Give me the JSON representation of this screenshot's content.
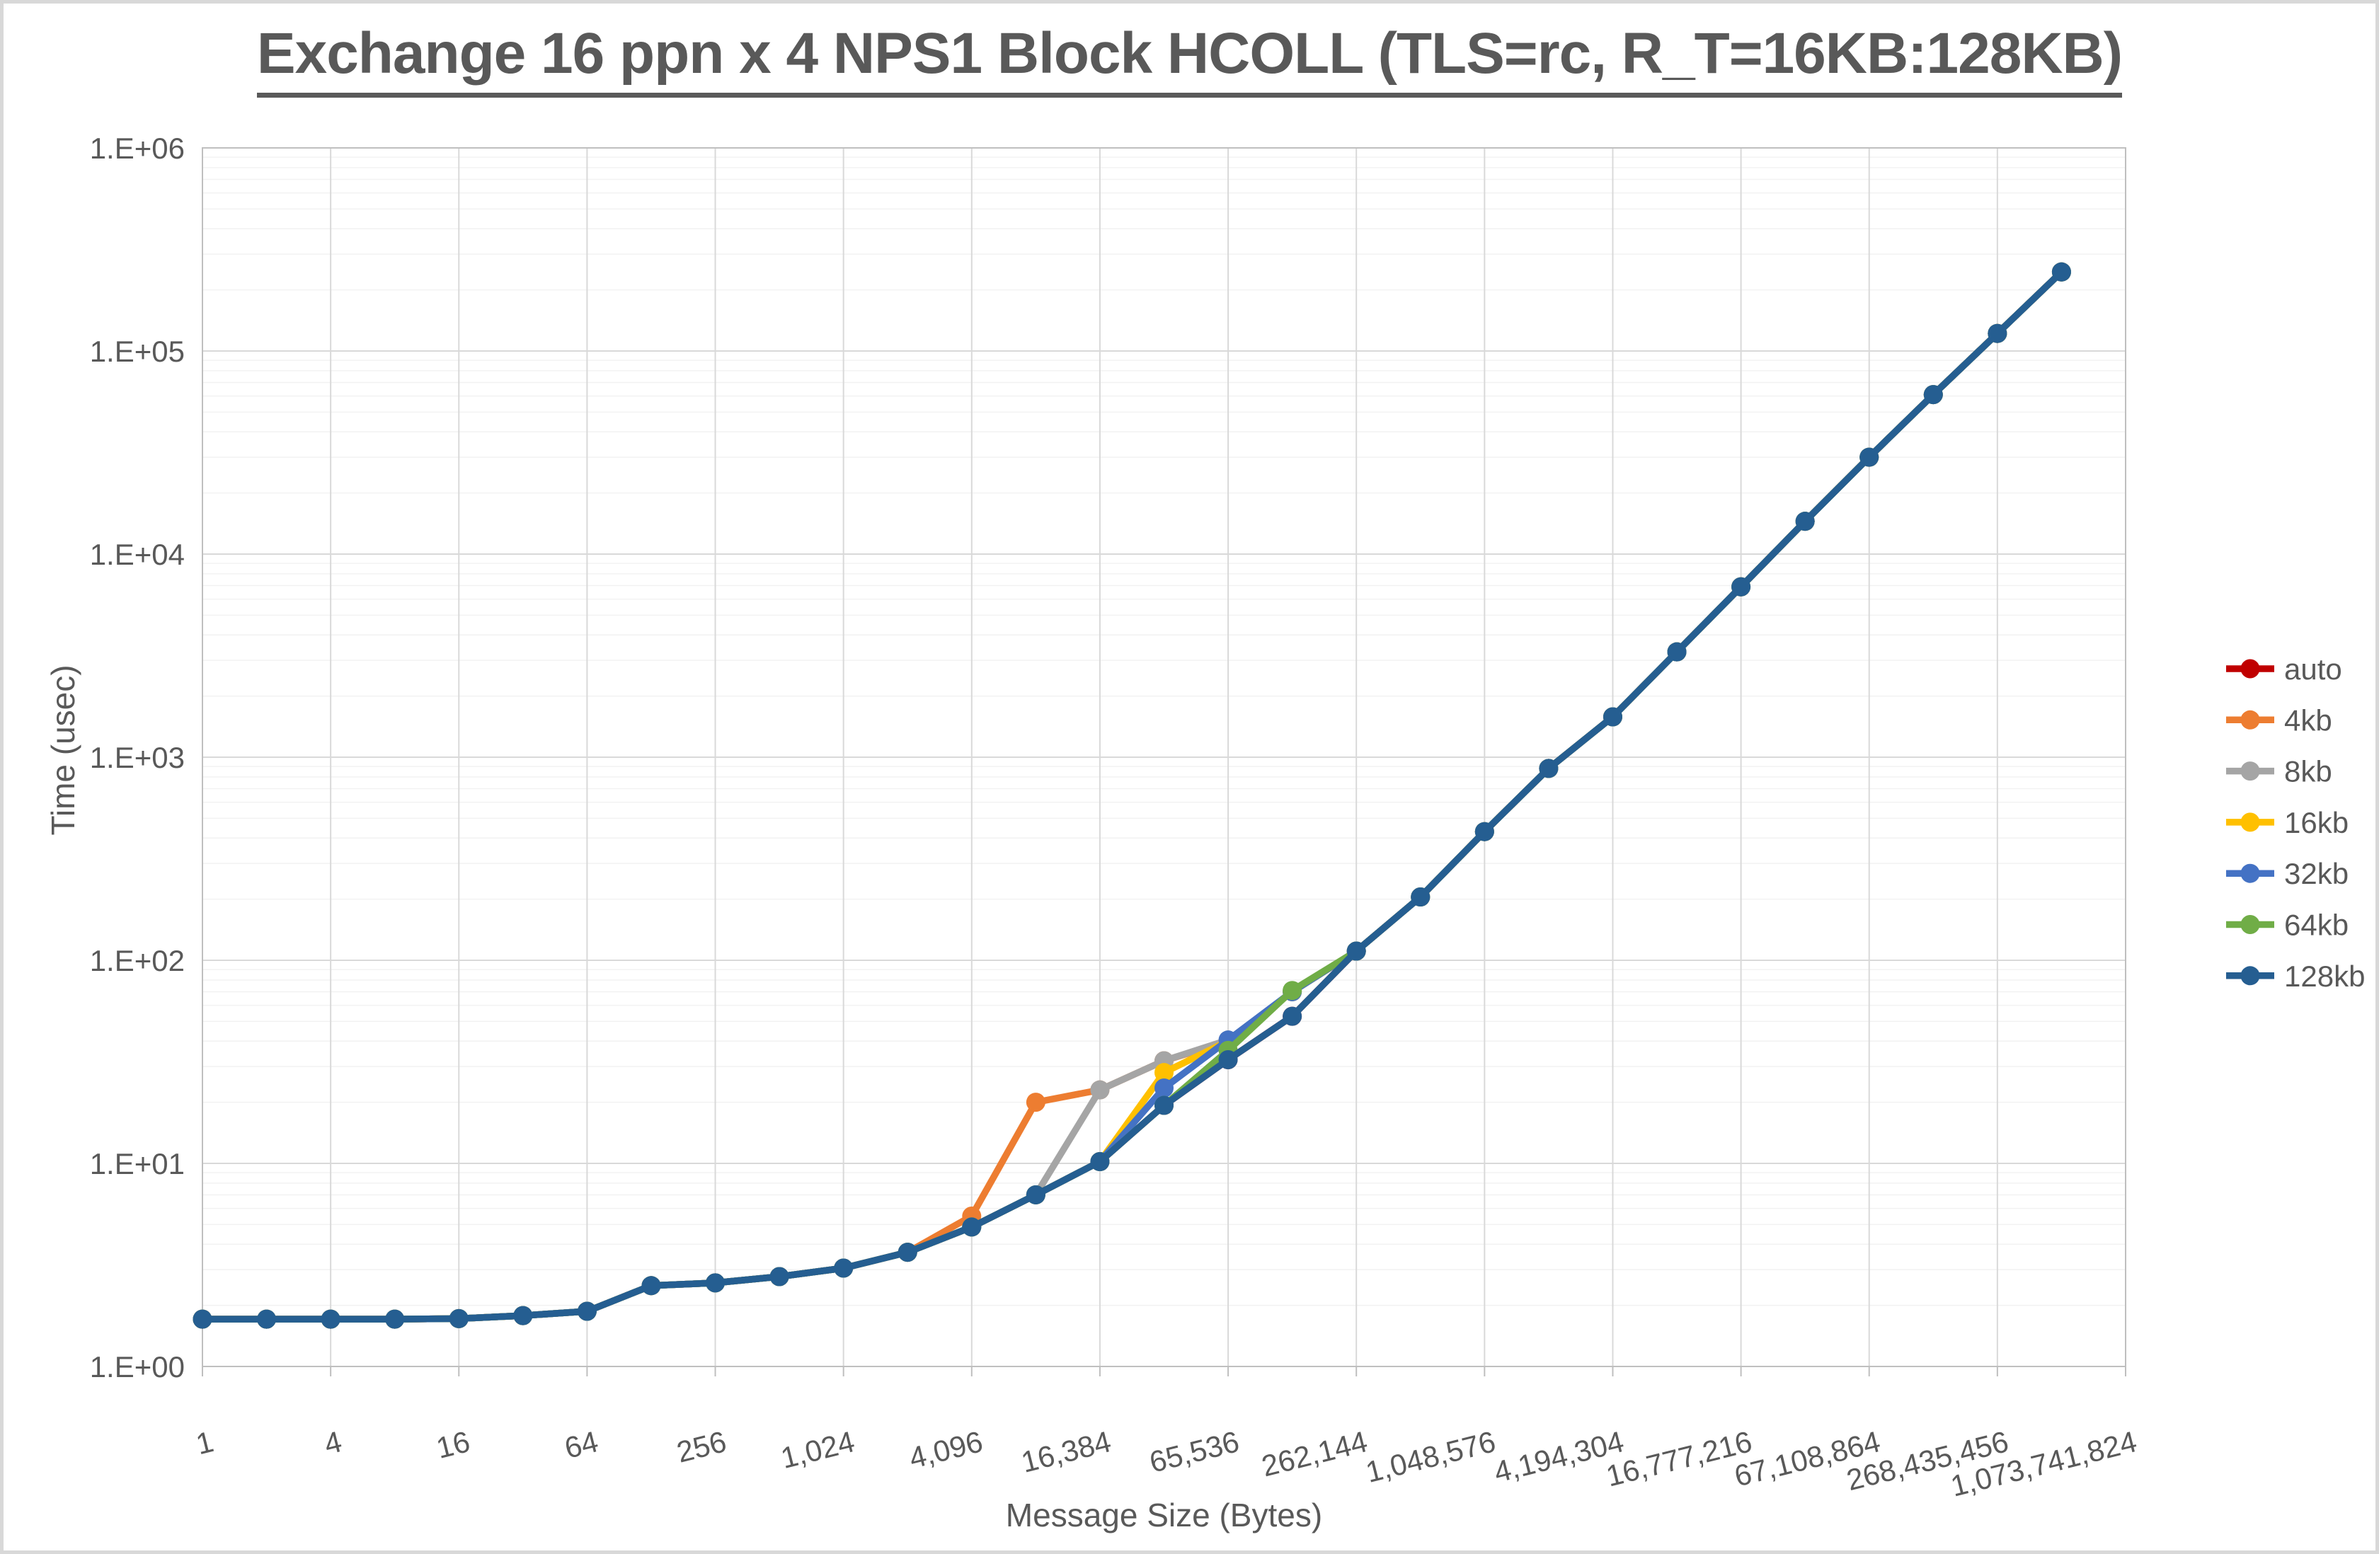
{
  "chart_data": {
    "type": "line",
    "title": "Exchange 16 ppn x 4 NPS1 Block HCOLL (TLS=rc, R_T=16KB:128KB)",
    "xlabel": "Message Size (Bytes)",
    "ylabel": "Time (usec)",
    "x_scale": "log2-categories",
    "y_scale": "log10",
    "ylim": [
      1,
      1000000
    ],
    "x_axis_last_category": 1073741824,
    "grid": "major and log-minor gridlines on",
    "legend_position": "right",
    "y_tick_labels": [
      "1.E+00",
      "1.E+01",
      "1.E+02",
      "1.E+03",
      "1.E+04",
      "1.E+05",
      "1.E+06"
    ],
    "x_tick_labels": [
      "1",
      "4",
      "16",
      "64",
      "256",
      "1,024",
      "4,096",
      "16,384",
      "65,536",
      "262,144",
      "1,048,576",
      "4,194,304",
      "16,777,216",
      "67,108,864",
      "268,435,456",
      "1,073,741,824"
    ],
    "message_sizes": [
      1,
      2,
      4,
      8,
      16,
      32,
      64,
      128,
      256,
      512,
      1024,
      2048,
      4096,
      8192,
      16384,
      32768,
      65536,
      131072,
      262144,
      524288,
      1048576,
      2097152,
      4194304,
      8388608,
      16777216,
      33554432,
      67108864,
      134217728,
      268435456,
      536870912
    ],
    "series": [
      {
        "name": "auto",
        "color": "#C00000",
        "values": [
          1.71,
          1.71,
          1.71,
          1.71,
          1.72,
          1.78,
          1.87,
          2.5,
          2.58,
          2.77,
          3.05,
          3.65,
          4.86,
          7.0,
          10.2,
          19.3,
          32.4,
          53,
          111,
          205,
          430,
          880,
          1580,
          3300,
          6900,
          14500,
          30000,
          61000,
          122000,
          245000
        ]
      },
      {
        "name": "4kb",
        "color": "#ED7D31",
        "values": [
          1.71,
          1.71,
          1.71,
          1.71,
          1.72,
          1.78,
          1.87,
          2.5,
          2.58,
          2.77,
          3.05,
          3.65,
          5.5,
          20,
          23,
          32,
          40,
          70,
          111,
          205,
          430,
          880,
          1580,
          3300,
          6900,
          14500,
          30000,
          61000,
          122000,
          245000
        ]
      },
      {
        "name": "8kb",
        "color": "#A5A5A5",
        "values": [
          1.71,
          1.71,
          1.71,
          1.71,
          1.72,
          1.78,
          1.87,
          2.5,
          2.58,
          2.77,
          3.05,
          3.65,
          4.86,
          7.0,
          23,
          32,
          40.5,
          70,
          111,
          205,
          430,
          880,
          1580,
          3300,
          6900,
          14500,
          30000,
          61000,
          122000,
          245000
        ]
      },
      {
        "name": "16kb",
        "color": "#FFC000",
        "values": [
          1.71,
          1.71,
          1.71,
          1.71,
          1.72,
          1.78,
          1.87,
          2.5,
          2.58,
          2.77,
          3.05,
          3.65,
          4.86,
          7.0,
          10.2,
          28,
          40,
          70,
          111,
          205,
          430,
          880,
          1580,
          3300,
          6900,
          14500,
          30000,
          61000,
          122000,
          245000
        ]
      },
      {
        "name": "32kb",
        "color": "#4472C4",
        "values": [
          1.71,
          1.71,
          1.71,
          1.71,
          1.72,
          1.78,
          1.87,
          2.5,
          2.58,
          2.77,
          3.05,
          3.65,
          4.86,
          7.0,
          10.2,
          23.5,
          40.5,
          70,
          111,
          205,
          430,
          880,
          1580,
          3300,
          6900,
          14500,
          30000,
          61000,
          122000,
          245000
        ]
      },
      {
        "name": "64kb",
        "color": "#70AD47",
        "values": [
          1.71,
          1.71,
          1.71,
          1.71,
          1.72,
          1.78,
          1.87,
          2.5,
          2.58,
          2.77,
          3.05,
          3.65,
          4.86,
          7.0,
          10.2,
          19.3,
          36,
          71,
          111,
          205,
          430,
          880,
          1580,
          3300,
          6900,
          14500,
          30000,
          61000,
          122000,
          245000
        ]
      },
      {
        "name": "128kb",
        "color": "#255E91",
        "values": [
          1.71,
          1.71,
          1.71,
          1.71,
          1.72,
          1.78,
          1.87,
          2.5,
          2.58,
          2.77,
          3.05,
          3.65,
          4.86,
          7.0,
          10.2,
          19.3,
          32.4,
          53,
          111,
          205,
          430,
          880,
          1580,
          3300,
          6900,
          14500,
          30000,
          61000,
          122000,
          245000
        ]
      }
    ],
    "colors": {
      "text": "#595959",
      "plot_border": "#BFBFBF",
      "major_gridline": "#D9D9D9",
      "minor_gridline": "#F2F2F2",
      "frame_border": "#D8D8D8",
      "background": "#FFFFFF"
    }
  }
}
